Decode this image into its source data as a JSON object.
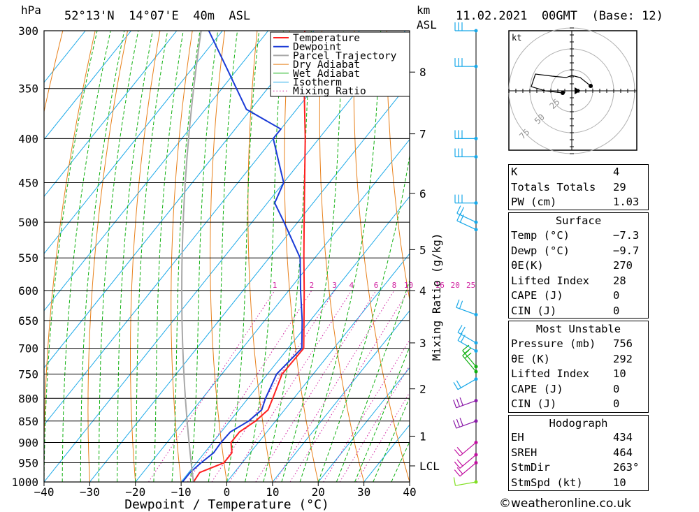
{
  "header": {
    "pressure_unit": "hPa",
    "location": "52°13'N  14°07'E  40m  ASL",
    "height_unit": "km",
    "height_ref": "ASL",
    "datetime": "11.02.2021  00GMT  (Base: 12)"
  },
  "footer": {
    "copyright": "©weatheronline.co.uk"
  },
  "colors": {
    "temperature": "#ff2020",
    "dewpoint": "#1a3ad6",
    "parcel": "#a8a8a8",
    "dry_adiabat": "#e8801a",
    "wet_adiabat": "#10b010",
    "isotherm": "#18a8e8",
    "mixing_ratio": "#d020a0"
  },
  "legend": [
    "Temperature",
    "Dewpoint",
    "Parcel Trajectory",
    "Dry Adiabat",
    "Wet Adiabat",
    "Isotherm",
    "Mixing Ratio"
  ],
  "chart_data": {
    "type": "line",
    "subtype": "skew-t log-p diagram",
    "xlabel": "Dewpoint / Temperature (°C)",
    "ylabel": "hPa",
    "xlim": [
      -40,
      40
    ],
    "ylim": [
      1000,
      300
    ],
    "y_scale": "log",
    "x_ticks": [
      -40,
      -30,
      -20,
      -10,
      0,
      10,
      20,
      30,
      40
    ],
    "x_tick_labels": [
      "−40",
      "−30",
      "−20",
      "−10",
      "0",
      "10",
      "20",
      "30",
      "40"
    ],
    "pressure_levels": [
      300,
      350,
      400,
      450,
      500,
      550,
      600,
      650,
      700,
      750,
      800,
      850,
      900,
      950,
      1000
    ],
    "height_km_ticks": [
      {
        "label": "8",
        "p": 335
      },
      {
        "label": "7",
        "p": 395
      },
      {
        "label": "6",
        "p": 463
      },
      {
        "label": "5",
        "p": 538
      },
      {
        "label": "4",
        "p": 600
      },
      {
        "label": "3",
        "p": 690
      },
      {
        "label": "2",
        "p": 780
      },
      {
        "label": "1",
        "p": 885
      },
      {
        "label": "LCL",
        "p": 958
      }
    ],
    "mixing_ratio_label": "Mixing Ratio (g/kg)",
    "mixing_ratio_values": [
      "1",
      "2",
      "3",
      "4",
      "6",
      "8",
      "10",
      "16",
      "20",
      "25"
    ],
    "series": [
      {
        "name": "Temperature",
        "p": [
          1000,
          975,
          950,
          925,
          900,
          875,
          850,
          825,
          800,
          750,
          700,
          650,
          600,
          550,
          500,
          450,
          400,
          350,
          300
        ],
        "t": [
          -7.3,
          -7.6,
          -4.0,
          -4.0,
          -6.0,
          -6.0,
          -4.4,
          -3.6,
          -4.6,
          -6.8,
          -6.6,
          -11.4,
          -16.6,
          -22.4,
          -28.6,
          -35.4,
          -43.0,
          -52.0,
          -62.0
        ]
      },
      {
        "name": "Dewpoint",
        "p": [
          1000,
          975,
          950,
          925,
          900,
          875,
          850,
          825,
          800,
          750,
          700,
          650,
          600,
          550,
          500,
          475,
          450,
          400,
          390,
          370,
          330,
          300
        ],
        "t": [
          -9.7,
          -9.7,
          -9.0,
          -8.0,
          -8.2,
          -8.0,
          -5.9,
          -5.0,
          -6.2,
          -8.0,
          -7.0,
          -11.8,
          -17.4,
          -23.2,
          -33.0,
          -38.4,
          -40.0,
          -50.0,
          -50.0,
          -61.0,
          -73.0,
          -83.0
        ]
      }
    ],
    "hodograph": {
      "unit": "kt",
      "rings": [
        "25",
        "50",
        "75"
      ]
    },
    "indices": {
      "general": [
        {
          "label": "K",
          "value": "4"
        },
        {
          "label": "Totals Totals",
          "value": "29"
        },
        {
          "label": "PW (cm)",
          "value": "1.03"
        }
      ],
      "surface_title": "Surface",
      "surface": [
        {
          "label": "Temp (°C)",
          "value": "−7.3"
        },
        {
          "label": "Dewp (°C)",
          "value": "−9.7"
        },
        {
          "label": "θE(K)",
          "value": "270"
        },
        {
          "label": "Lifted Index",
          "value": "28"
        },
        {
          "label": "CAPE (J)",
          "value": "0"
        },
        {
          "label": "CIN (J)",
          "value": "0"
        }
      ],
      "mu_title": "Most Unstable",
      "most_unstable": [
        {
          "label": "Pressure (mb)",
          "value": "756"
        },
        {
          "label": "θE (K)",
          "value": "292"
        },
        {
          "label": "Lifted Index",
          "value": "10"
        },
        {
          "label": "CAPE (J)",
          "value": "0"
        },
        {
          "label": "CIN (J)",
          "value": "0"
        }
      ],
      "hodo_title": "Hodograph",
      "hodo": [
        {
          "label": "EH",
          "value": "434"
        },
        {
          "label": "SREH",
          "value": "464"
        },
        {
          "label": "StmDir",
          "value": "263°"
        },
        {
          "label": "StmSpd (kt)",
          "value": "10"
        }
      ]
    }
  }
}
